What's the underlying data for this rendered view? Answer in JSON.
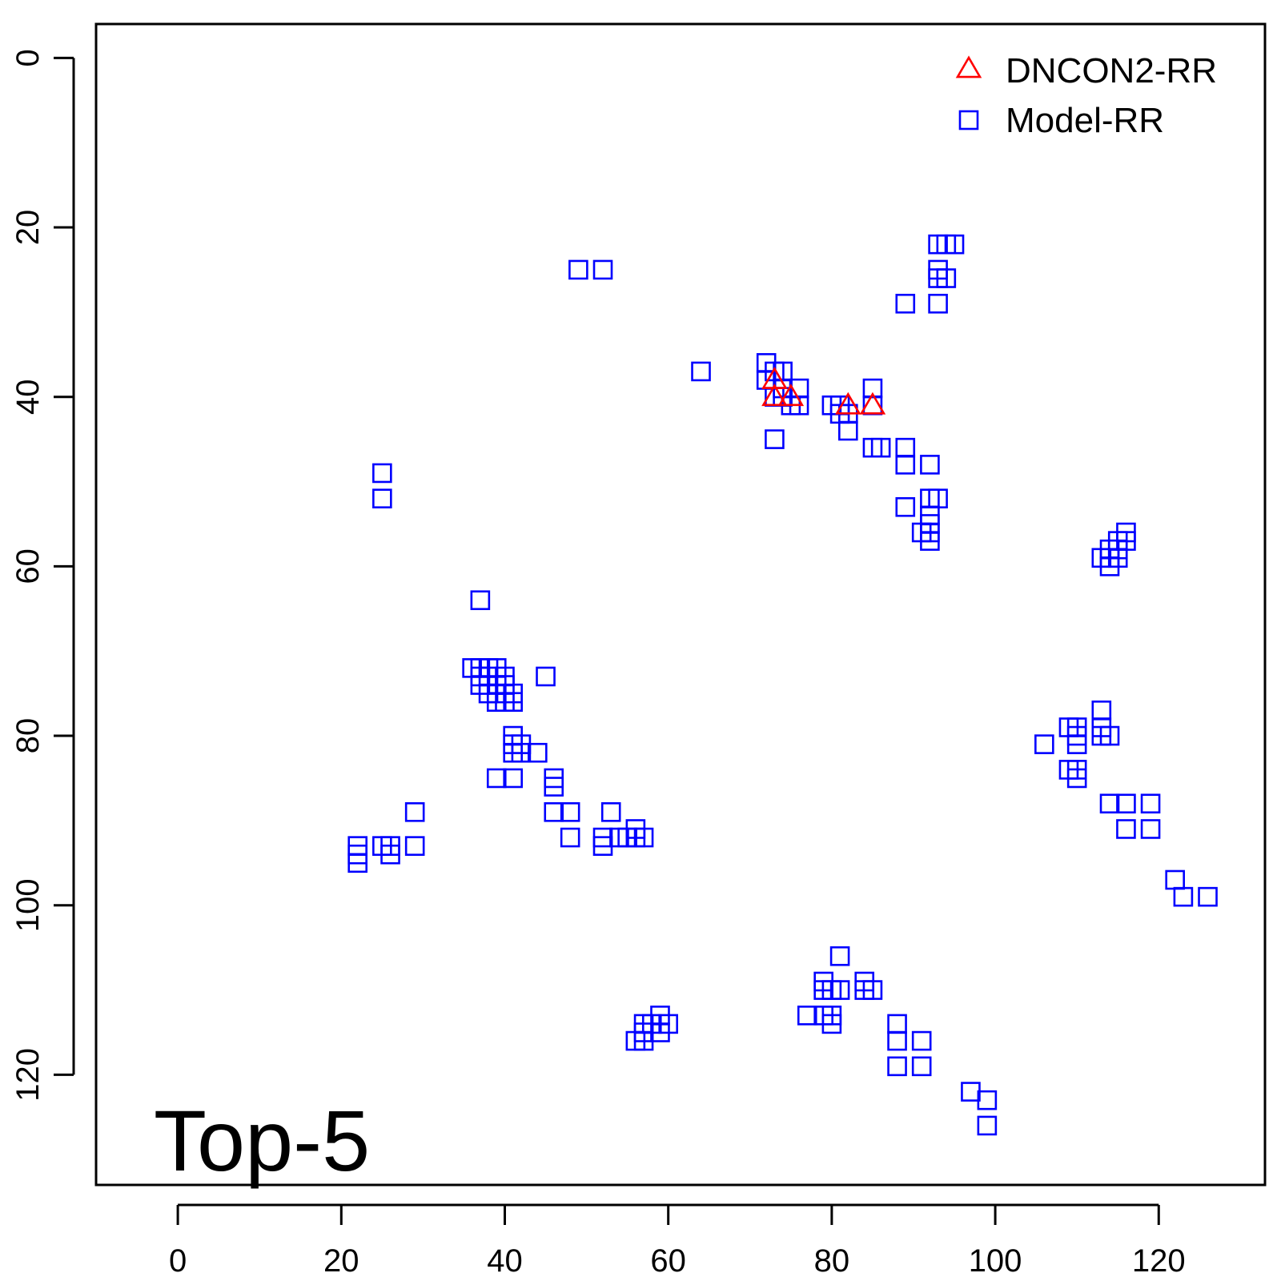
{
  "chart_data": {
    "type": "scatter",
    "title": "",
    "xlabel": "",
    "ylabel": "",
    "panel_label": "Top-5",
    "xlim": [
      -10,
      133
    ],
    "ylim": [
      133,
      -4
    ],
    "y_reversed": true,
    "xticks": [
      0,
      20,
      40,
      60,
      80,
      100,
      120
    ],
    "yticks": [
      0,
      20,
      40,
      60,
      80,
      100,
      120
    ],
    "xtick_labels": [
      "0",
      "20",
      "40",
      "60",
      "80",
      "100",
      "120"
    ],
    "ytick_labels": [
      "0",
      "20",
      "40",
      "60",
      "80",
      "100",
      "120"
    ],
    "grid": false,
    "legend_position": "top-right",
    "series": [
      {
        "name": "DNCON2-RR",
        "marker": "triangle-open",
        "color": "#ff0000",
        "points": [
          [
            73,
            38
          ],
          [
            73,
            40
          ],
          [
            75,
            40
          ],
          [
            82,
            41
          ],
          [
            85,
            41
          ]
        ]
      },
      {
        "name": "Model-RR",
        "marker": "square-open",
        "color": "#0000ff",
        "points": [
          [
            49,
            25
          ],
          [
            52,
            25
          ],
          [
            93,
            22
          ],
          [
            94,
            22
          ],
          [
            95,
            22
          ],
          [
            93,
            25
          ],
          [
            93,
            26
          ],
          [
            94,
            26
          ],
          [
            89,
            29
          ],
          [
            93,
            29
          ],
          [
            64,
            37
          ],
          [
            72,
            36
          ],
          [
            72,
            38
          ],
          [
            73,
            37
          ],
          [
            74,
            37
          ],
          [
            74,
            39
          ],
          [
            73,
            40
          ],
          [
            74,
            40
          ],
          [
            76,
            39
          ],
          [
            76,
            41
          ],
          [
            75,
            41
          ],
          [
            73,
            45
          ],
          [
            80,
            41
          ],
          [
            81,
            41
          ],
          [
            81,
            42
          ],
          [
            82,
            42
          ],
          [
            82,
            44
          ],
          [
            85,
            39
          ],
          [
            85,
            41
          ],
          [
            85,
            46
          ],
          [
            86,
            46
          ],
          [
            89,
            46
          ],
          [
            89,
            48
          ],
          [
            92,
            48
          ],
          [
            89,
            53
          ],
          [
            92,
            52
          ],
          [
            93,
            52
          ],
          [
            92,
            54
          ],
          [
            92,
            55
          ],
          [
            91,
            56
          ],
          [
            92,
            56
          ],
          [
            92,
            57
          ],
          [
            25,
            49
          ],
          [
            25,
            52
          ],
          [
            116,
            56
          ],
          [
            116,
            57
          ],
          [
            115,
            57
          ],
          [
            114,
            58
          ],
          [
            115,
            58
          ],
          [
            113,
            59
          ],
          [
            114,
            59
          ],
          [
            115,
            59
          ],
          [
            114,
            60
          ],
          [
            37,
            64
          ],
          [
            36,
            72
          ],
          [
            37,
            72
          ],
          [
            38,
            72
          ],
          [
            39,
            72
          ],
          [
            37,
            73
          ],
          [
            38,
            73
          ],
          [
            40,
            73
          ],
          [
            45,
            73
          ],
          [
            37,
            74
          ],
          [
            39,
            74
          ],
          [
            40,
            74
          ],
          [
            38,
            75
          ],
          [
            39,
            75
          ],
          [
            41,
            75
          ],
          [
            39,
            76
          ],
          [
            40,
            76
          ],
          [
            41,
            76
          ],
          [
            41,
            80
          ],
          [
            41,
            81
          ],
          [
            42,
            81
          ],
          [
            41,
            82
          ],
          [
            42,
            82
          ],
          [
            44,
            82
          ],
          [
            39,
            85
          ],
          [
            41,
            85
          ],
          [
            46,
            85
          ],
          [
            46,
            86
          ],
          [
            46,
            89
          ],
          [
            48,
            89
          ],
          [
            48,
            92
          ],
          [
            29,
            89
          ],
          [
            29,
            93
          ],
          [
            22,
            93
          ],
          [
            22,
            94
          ],
          [
            22,
            95
          ],
          [
            25,
            93
          ],
          [
            26,
            93
          ],
          [
            26,
            94
          ],
          [
            53,
            89
          ],
          [
            52,
            92
          ],
          [
            54,
            92
          ],
          [
            52,
            93
          ],
          [
            56,
            91
          ],
          [
            55,
            92
          ],
          [
            56,
            92
          ],
          [
            57,
            92
          ],
          [
            106,
            81
          ],
          [
            109,
            79
          ],
          [
            110,
            79
          ],
          [
            110,
            80
          ],
          [
            110,
            81
          ],
          [
            113,
            77
          ],
          [
            113,
            79
          ],
          [
            113,
            80
          ],
          [
            114,
            80
          ],
          [
            109,
            84
          ],
          [
            110,
            84
          ],
          [
            110,
            85
          ],
          [
            114,
            88
          ],
          [
            116,
            88
          ],
          [
            116,
            91
          ],
          [
            119,
            88
          ],
          [
            119,
            91
          ],
          [
            122,
            97
          ],
          [
            123,
            99
          ],
          [
            126,
            99
          ],
          [
            81,
            106
          ],
          [
            79,
            109
          ],
          [
            79,
            110
          ],
          [
            81,
            110
          ],
          [
            80,
            110
          ],
          [
            84,
            109
          ],
          [
            84,
            110
          ],
          [
            85,
            110
          ],
          [
            77,
            113
          ],
          [
            79,
            113
          ],
          [
            80,
            113
          ],
          [
            80,
            114
          ],
          [
            88,
            114
          ],
          [
            88,
            116
          ],
          [
            91,
            116
          ],
          [
            88,
            119
          ],
          [
            91,
            119
          ],
          [
            59,
            113
          ],
          [
            57,
            114
          ],
          [
            58,
            114
          ],
          [
            60,
            114
          ],
          [
            57,
            115
          ],
          [
            59,
            115
          ],
          [
            56,
            116
          ],
          [
            57,
            116
          ],
          [
            97,
            122
          ],
          [
            99,
            123
          ],
          [
            99,
            126
          ]
        ]
      }
    ]
  }
}
